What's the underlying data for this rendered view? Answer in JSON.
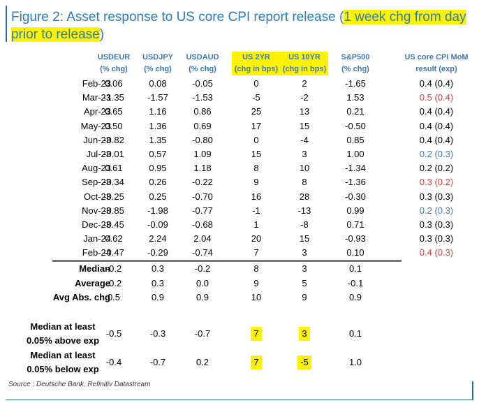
{
  "title": {
    "part1": "Figure 2: Asset response to US core CPI report release (",
    "highlight": "1 week chg from day prior to release",
    "part2": ")"
  },
  "colors": {
    "header": "#3f78b8",
    "cpi_normal": "#000000",
    "cpi_above": "#e03b3b",
    "cpi_below": "#3f78b8",
    "highlight": "#fff200"
  },
  "chart_data": {
    "type": "table",
    "columns": [
      {
        "name": "USDEUR",
        "unit": "(% chg)",
        "highlight": false
      },
      {
        "name": "USDJPY",
        "unit": "(% chg)",
        "highlight": false
      },
      {
        "name": "USDAUD",
        "unit": "(% chg)",
        "highlight": false
      },
      {
        "name": "US 2YR",
        "unit": "(chg in bps)",
        "highlight": true
      },
      {
        "name": "US 10YR",
        "unit": "(chg in bps)",
        "highlight": true
      },
      {
        "name": "S&P500",
        "unit": "(% chg)",
        "highlight": false
      },
      {
        "name": "US core CPI MoM",
        "unit": "result (exp)",
        "highlight": false
      }
    ],
    "rows": [
      {
        "date": "Feb-23",
        "values": [
          "0.06",
          "0.08",
          "-0.05",
          "0",
          "2",
          "-1.65"
        ],
        "cpi": "0.4 (0.4)",
        "cpi_tone": "normal"
      },
      {
        "date": "Mar-23",
        "values": [
          "-1.35",
          "-1.57",
          "-1.53",
          "-5",
          "-2",
          "1.53"
        ],
        "cpi": "0.5 (0.4)",
        "cpi_tone": "above"
      },
      {
        "date": "Apr-23",
        "values": [
          "0.65",
          "1.16",
          "0.86",
          "25",
          "13",
          "0.21"
        ],
        "cpi": "0.4 (0.4)",
        "cpi_tone": "normal"
      },
      {
        "date": "May-23",
        "values": [
          "0.50",
          "1.36",
          "0.69",
          "17",
          "15",
          "-0.50"
        ],
        "cpi": "0.4 (0.4)",
        "cpi_tone": "normal"
      },
      {
        "date": "Jun-23",
        "values": [
          "-0.82",
          "1.35",
          "-0.80",
          "0",
          "-4",
          "0.85"
        ],
        "cpi": "0.4 (0.4)",
        "cpi_tone": "normal"
      },
      {
        "date": "Jul-23",
        "values": [
          "-0.01",
          "0.57",
          "1.09",
          "15",
          "3",
          "1.00"
        ],
        "cpi": "0.2 (0.3)",
        "cpi_tone": "below"
      },
      {
        "date": "Aug-23",
        "values": [
          "0.61",
          "0.95",
          "1.18",
          "8",
          "10",
          "-1.34"
        ],
        "cpi": "0.2 (0.2)",
        "cpi_tone": "normal"
      },
      {
        "date": "Sep-23",
        "values": [
          "-0.34",
          "0.26",
          "-0.22",
          "9",
          "8",
          "-1.36"
        ],
        "cpi": "0.3 (0.2)",
        "cpi_tone": "above"
      },
      {
        "date": "Oct-23",
        "values": [
          "-0.25",
          "0.25",
          "-0.70",
          "16",
          "28",
          "-0.30"
        ],
        "cpi": "0.3 (0.3)",
        "cpi_tone": "normal"
      },
      {
        "date": "Nov-23",
        "values": [
          "-0.85",
          "-1.98",
          "-0.77",
          "-1",
          "-13",
          "0.99"
        ],
        "cpi": "0.2 (0.3)",
        "cpi_tone": "below"
      },
      {
        "date": "Dec-23",
        "values": [
          "-0.45",
          "-0.09",
          "-0.68",
          "1",
          "-8",
          "0.71"
        ],
        "cpi": "0.3 (0.3)",
        "cpi_tone": "normal"
      },
      {
        "date": "Jan-24",
        "values": [
          "0.62",
          "2.24",
          "2.04",
          "20",
          "15",
          "-0.93"
        ],
        "cpi": "0.3 (0.3)",
        "cpi_tone": "normal"
      },
      {
        "date": "Feb-24",
        "values": [
          "-0.47",
          "-0.29",
          "-0.74",
          "7",
          "3",
          "0.10"
        ],
        "cpi": "0.4 (0.3)",
        "cpi_tone": "above"
      }
    ],
    "stats": [
      {
        "label": "Median",
        "values": [
          "-0.2",
          "0.3",
          "-0.2",
          "8",
          "3",
          "0.1"
        ]
      },
      {
        "label": "Average",
        "values": [
          "-0.2",
          "0.3",
          "0.0",
          "9",
          "5",
          "-0.1"
        ]
      },
      {
        "label": "Avg Abs. chg",
        "values": [
          "0.5",
          "0.9",
          "0.9",
          "10",
          "9",
          "0.9"
        ]
      }
    ],
    "exp_stats": [
      {
        "line1": "Median at least",
        "line2": "0.05% above exp",
        "values": [
          "-0.5",
          "-0.3",
          "-0.7",
          "7",
          "3",
          "0.1"
        ]
      },
      {
        "line1": "Median at least",
        "line2": "0.05% below exp",
        "values": [
          "-0.4",
          "-0.7",
          "0.2",
          "7",
          "-5",
          "1.0"
        ]
      }
    ]
  },
  "source": "Source : Deutsche Bank, Refinitiv Datastream"
}
